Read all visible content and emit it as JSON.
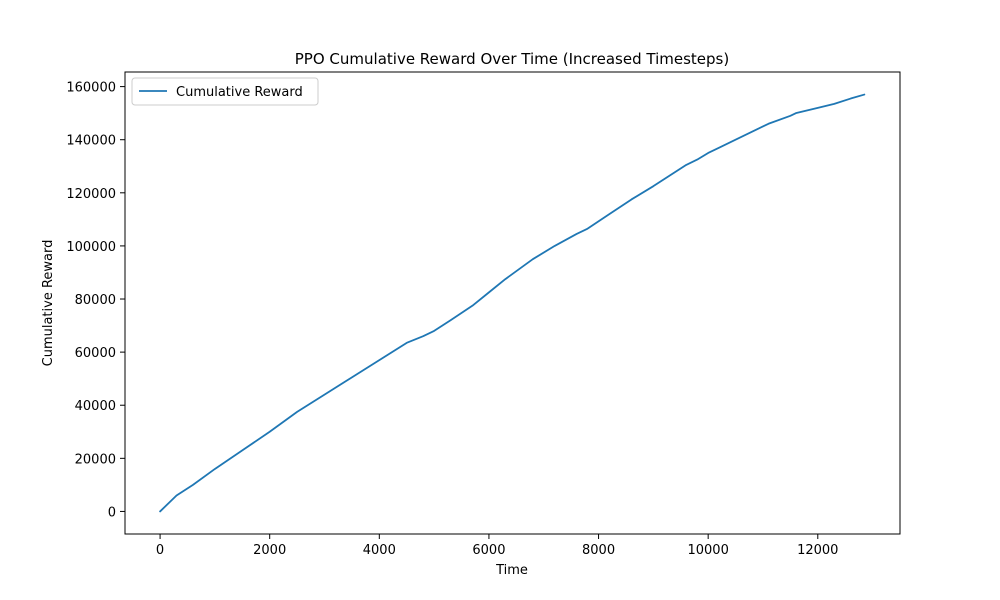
{
  "chart_data": {
    "type": "line",
    "title": "PPO Cumulative Reward Over Time (Increased Timesteps)",
    "xlabel": "Time",
    "ylabel": "Cumulative Reward",
    "xlim": [
      -640,
      13500
    ],
    "ylim": [
      -8500,
      165500
    ],
    "xticks": [
      0,
      2000,
      4000,
      6000,
      8000,
      10000,
      12000
    ],
    "yticks": [
      0,
      20000,
      40000,
      60000,
      80000,
      100000,
      120000,
      140000,
      160000
    ],
    "grid": false,
    "legend_position": "upper-left",
    "series": [
      {
        "name": "Cumulative Reward",
        "color": "#1f77b4",
        "x": [
          0,
          300,
          600,
          1000,
          1500,
          2000,
          2500,
          3000,
          3500,
          4000,
          4500,
          4800,
          5000,
          5300,
          5700,
          6000,
          6300,
          6800,
          7200,
          7600,
          7800,
          8200,
          8600,
          9000,
          9300,
          9600,
          9800,
          10000,
          10200,
          10500,
          10900,
          11100,
          11500,
          11600,
          12000,
          12300,
          12600,
          12850
        ],
        "y": [
          0,
          6000,
          10000,
          16000,
          23000,
          30000,
          37500,
          44000,
          50500,
          57000,
          63500,
          66000,
          68000,
          72000,
          77500,
          82500,
          87500,
          95000,
          100000,
          104500,
          106500,
          112000,
          117500,
          122500,
          126500,
          130500,
          132500,
          135000,
          137000,
          140000,
          144000,
          146000,
          149000,
          150000,
          152000,
          153500,
          155500,
          157000
        ]
      }
    ]
  }
}
